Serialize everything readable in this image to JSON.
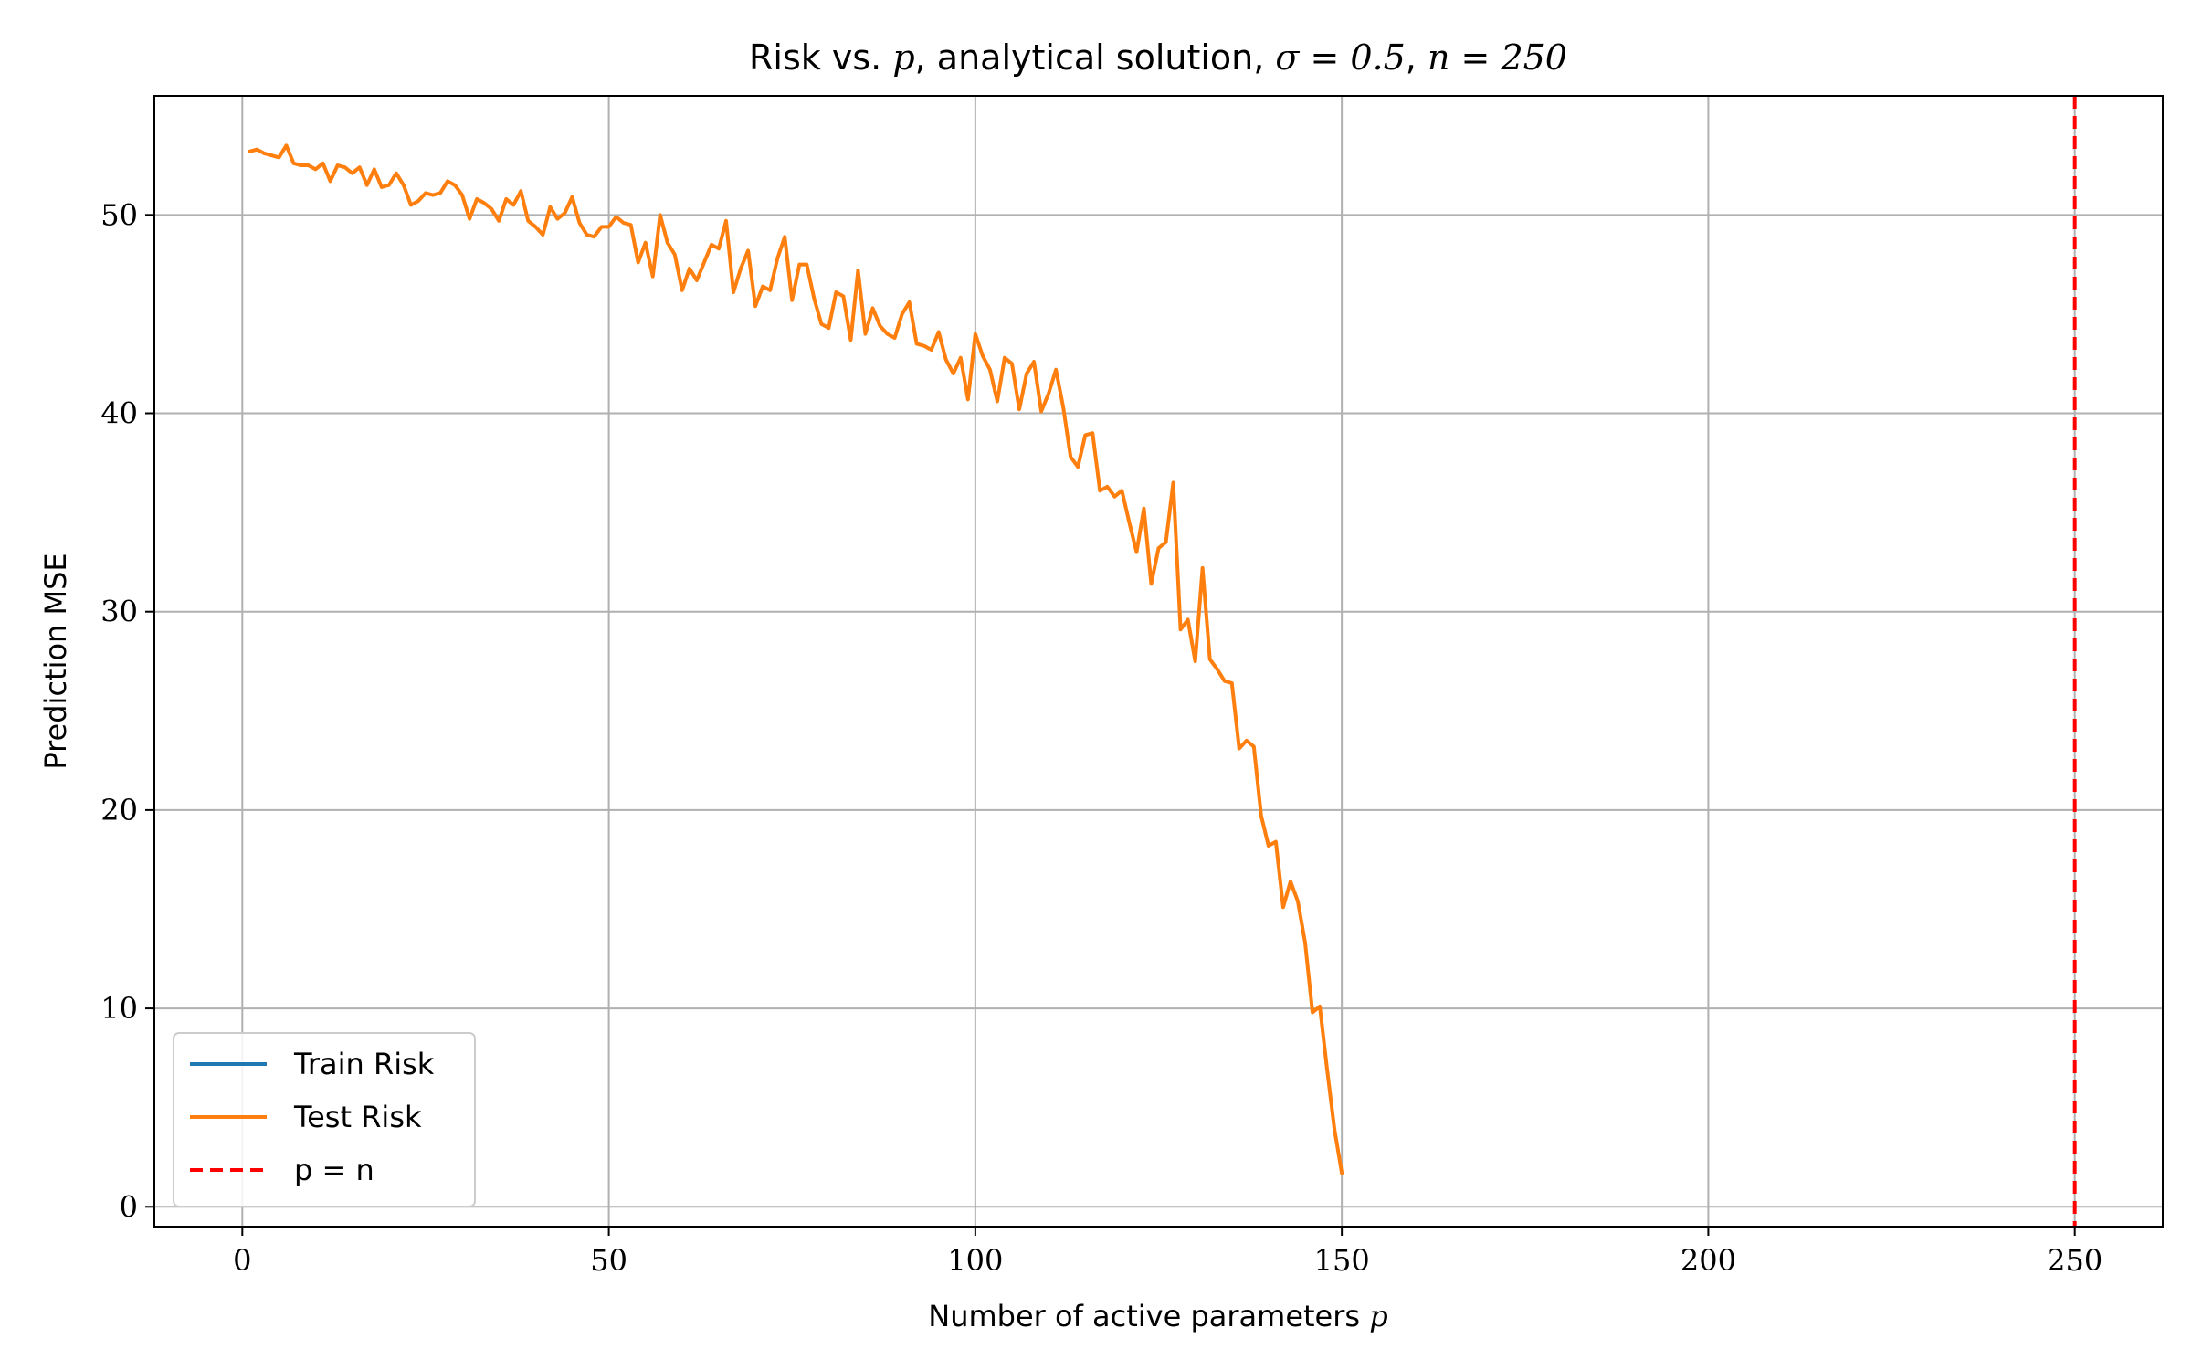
{
  "chart_data": {
    "type": "line",
    "title": {
      "prefix": "Risk vs. ",
      "var_p": "p",
      "middle": ", analytical solution, ",
      "sigma_expr": "σ = 0.5",
      "sep": ", ",
      "n_expr": "n = 250"
    },
    "xlabel": {
      "text": "Number of active parameters ",
      "var": "p"
    },
    "ylabel": "Prediction MSE",
    "xlim": [
      -12,
      262
    ],
    "ylim": [
      -1,
      56
    ],
    "xticks": [
      0,
      50,
      100,
      150,
      200,
      250
    ],
    "yticks": [
      0,
      10,
      20,
      30,
      40,
      50
    ],
    "grid": true,
    "legend_position": "lower-left",
    "legend": [
      {
        "label": "Train Risk",
        "color": "#1f77b4",
        "style": "solid"
      },
      {
        "label": "Test Risk",
        "color": "#ff7f0e",
        "style": "solid"
      },
      {
        "label": "p = n",
        "color": "#ff0000",
        "style": "dashed"
      }
    ],
    "series": [
      {
        "name": "Train Risk",
        "color": "#1f77b4",
        "x": [],
        "y": []
      },
      {
        "name": "Test Risk",
        "color": "#ff7f0e",
        "x": [
          1,
          2,
          3,
          4,
          5,
          6,
          7,
          8,
          9,
          10,
          11,
          12,
          13,
          14,
          15,
          16,
          17,
          18,
          19,
          20,
          21,
          22,
          23,
          24,
          25,
          26,
          27,
          28,
          29,
          30,
          31,
          32,
          33,
          34,
          35,
          36,
          37,
          38,
          39,
          40,
          41,
          42,
          43,
          44,
          45,
          46,
          47,
          48,
          49,
          50,
          51,
          52,
          53,
          54,
          55,
          56,
          57,
          58,
          59,
          60,
          61,
          62,
          63,
          64,
          65,
          66,
          67,
          68,
          69,
          70,
          71,
          72,
          73,
          74,
          75,
          76,
          77,
          78,
          79,
          80,
          81,
          82,
          83,
          84,
          85,
          86,
          87,
          88,
          89,
          90,
          91,
          92,
          93,
          94,
          95,
          96,
          97,
          98,
          99,
          100,
          101,
          102,
          103,
          104,
          105,
          106,
          107,
          108,
          109,
          110,
          111,
          112,
          113,
          114,
          115,
          116,
          117,
          118,
          119,
          120,
          121,
          122,
          123,
          124,
          125,
          126,
          127,
          128,
          129,
          130,
          131,
          132,
          133,
          134,
          135,
          136,
          137,
          138,
          139,
          140,
          141,
          142,
          143,
          144,
          145,
          146,
          147,
          148,
          149,
          150
        ],
        "y": [
          53.2,
          53.3,
          53.1,
          53.0,
          52.9,
          53.5,
          52.6,
          52.5,
          52.5,
          52.3,
          52.6,
          51.7,
          52.5,
          52.4,
          52.1,
          52.4,
          51.5,
          52.3,
          51.4,
          51.5,
          52.1,
          51.5,
          50.5,
          50.7,
          51.1,
          51.0,
          51.1,
          51.7,
          51.5,
          51.0,
          49.8,
          50.8,
          50.6,
          50.3,
          49.7,
          50.8,
          50.5,
          51.2,
          49.7,
          49.4,
          49.0,
          50.4,
          49.8,
          50.1,
          50.9,
          49.6,
          49.0,
          48.9,
          49.4,
          49.4,
          49.9,
          49.6,
          49.5,
          47.6,
          48.6,
          46.9,
          50.0,
          48.6,
          48.0,
          46.2,
          47.3,
          46.7,
          47.6,
          48.5,
          48.3,
          49.7,
          46.1,
          47.3,
          48.2,
          45.4,
          46.4,
          46.2,
          47.8,
          48.9,
          45.7,
          47.5,
          47.5,
          45.8,
          44.5,
          44.3,
          46.1,
          45.9,
          43.7,
          47.2,
          44.0,
          45.3,
          44.4,
          44.0,
          43.8,
          45.0,
          45.6,
          43.5,
          43.4,
          43.2,
          44.1,
          42.7,
          42.0,
          42.8,
          40.7,
          44.0,
          42.9,
          42.2,
          40.6,
          42.8,
          42.5,
          40.2,
          42.0,
          42.6,
          40.1,
          41.0,
          42.2,
          40.3,
          37.8,
          37.3,
          38.9,
          39.0,
          36.1,
          36.3,
          35.8,
          36.1,
          34.5,
          33.0,
          35.2,
          31.4,
          33.2,
          33.5,
          36.5,
          29.1,
          29.6,
          27.5,
          32.2,
          27.6,
          27.1,
          26.5,
          26.4,
          23.1,
          23.5,
          23.2,
          19.7,
          18.2,
          18.4,
          15.1,
          16.4,
          15.4,
          13.3,
          9.8,
          10.1,
          6.9,
          3.9,
          1.7
        ]
      },
      {
        "name": "p = n",
        "color": "#ff0000",
        "style": "dashed",
        "vline_x": 250
      }
    ]
  }
}
